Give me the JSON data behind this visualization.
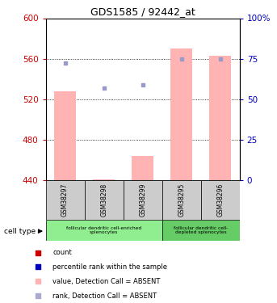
{
  "title": "GDS1585 / 92442_at",
  "samples": [
    "GSM38297",
    "GSM38298",
    "GSM38299",
    "GSM38295",
    "GSM38296"
  ],
  "bar_values": [
    528,
    441,
    464,
    570,
    563
  ],
  "bar_base": 440,
  "rank_values": [
    556,
    531,
    534,
    560,
    560
  ],
  "ylim_left": [
    440,
    600
  ],
  "ylim_right": [
    0,
    100
  ],
  "yticks_left": [
    440,
    480,
    520,
    560,
    600
  ],
  "yticks_right": [
    0,
    25,
    50,
    75,
    100
  ],
  "bar_color": "#ffb3b3",
  "rank_color": "#9999cc",
  "left_tick_color": "#cc0000",
  "right_tick_color": "#0000bb",
  "group1_label": "follicular dendritic cell-enriched\nsplenocytes",
  "group2_label": "follicular dendritic cell-\ndepleted splenocytes",
  "group1_color": "#90ee90",
  "group2_color": "#66cc66",
  "sample_bg_color": "#cccccc",
  "legend_items": [
    {
      "label": "count",
      "color": "#cc0000"
    },
    {
      "label": "percentile rank within the sample",
      "color": "#0000bb"
    },
    {
      "label": "value, Detection Call = ABSENT",
      "color": "#ffb3b3"
    },
    {
      "label": "rank, Detection Call = ABSENT",
      "color": "#aaaacc"
    }
  ],
  "cell_type_label": "cell type"
}
